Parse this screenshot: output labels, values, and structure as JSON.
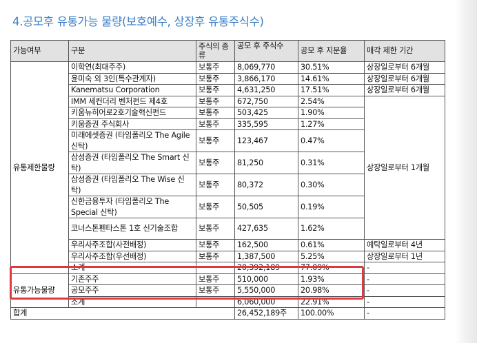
{
  "section_title": "4.공모후 유통가능 물량(보호예수, 상장후 유통주식수)",
  "table": {
    "headers": {
      "category": "가능여부",
      "group": "구분",
      "stock_type": "주식의 종류",
      "shares": "공모 후 주식수",
      "ratio": "공모 후 지분율",
      "restriction": "매각 제한 기간"
    },
    "restricted_label": "유통제한물량",
    "restricted_rows": [
      {
        "name": "이학연(최대주주)",
        "type": "보통주",
        "shares": "8,069,770",
        "ratio": "30.51%",
        "period": "상장일로부터 6개월"
      },
      {
        "name": "윤미숙 외 3인(특수관계자)",
        "type": "보통주",
        "shares": "3,866,170",
        "ratio": "14.61%",
        "period": "상장일로부터 6개월"
      },
      {
        "name": "Kanematsu Corporation",
        "type": "보통주",
        "shares": "4,631,250",
        "ratio": "17.51%",
        "period": "상장일로부터 6개월"
      },
      {
        "name": "IMM 세컨더리 벤처펀드 제4호",
        "type": "보통주",
        "shares": "672,750",
        "ratio": "2.54%"
      },
      {
        "name": "키움뉴히어로2호기술혁신펀드",
        "type": "보통주",
        "shares": "503,425",
        "ratio": "1.90%"
      },
      {
        "name": "키움증권 주식회사",
        "type": "보통주",
        "shares": "335,595",
        "ratio": "1.27%"
      },
      {
        "name": "미래에셋증권\n(타임폴리오 The Agile 신탁)",
        "type": "보통주",
        "shares": "123,467",
        "ratio": "0.47%"
      },
      {
        "name": "삼성증권\n(타임폴리오 The Smart 신탁)",
        "type": "보통주",
        "shares": "81,250",
        "ratio": "0.31%"
      },
      {
        "name": "삼성증권\n(타임폴리오 The Wise 신탁)",
        "type": "보통주",
        "shares": "80,372",
        "ratio": "0.30%"
      },
      {
        "name": "신한금융투자\n(타임폴리오 The Special 신탁)",
        "type": "보통주",
        "shares": "50,505",
        "ratio": "0.19%"
      },
      {
        "name": "코너스톤펜타스톤 1호\n신기술조합",
        "type": "보통주",
        "shares": "427,635",
        "ratio": "1.62%"
      },
      {
        "name": "우리사주조합(사전배정)",
        "type": "보통주",
        "shares": "162,500",
        "ratio": "0.61%",
        "period": "예탁일로부터 4년"
      },
      {
        "name": "우리사주조합(우선배정)",
        "type": "보통주",
        "shares": "1,387,500",
        "ratio": "5.25%",
        "period": "상장일로부터 1년"
      }
    ],
    "grouped_period": "상장일로부터 1개월",
    "restricted_subtotal": {
      "name": "소계",
      "shares": "20,392,189",
      "ratio": "77.09%",
      "period": "-"
    },
    "tradable_label": "유통가능물량",
    "tradable_rows": [
      {
        "name": "기존주주",
        "type": "보통주",
        "shares": "510,000",
        "ratio": "1.93%",
        "period": "-"
      },
      {
        "name": "공모주주",
        "type": "보통주",
        "shares": "5,550,000",
        "ratio": "20.98%",
        "period": "-"
      }
    ],
    "tradable_subtotal": {
      "name": "소계",
      "shares": "6,060,000",
      "ratio": "22.91%",
      "period": "-"
    },
    "total": {
      "label": "합계",
      "shares": "26,452,189주",
      "ratio": "100.00%",
      "period": "-"
    }
  }
}
